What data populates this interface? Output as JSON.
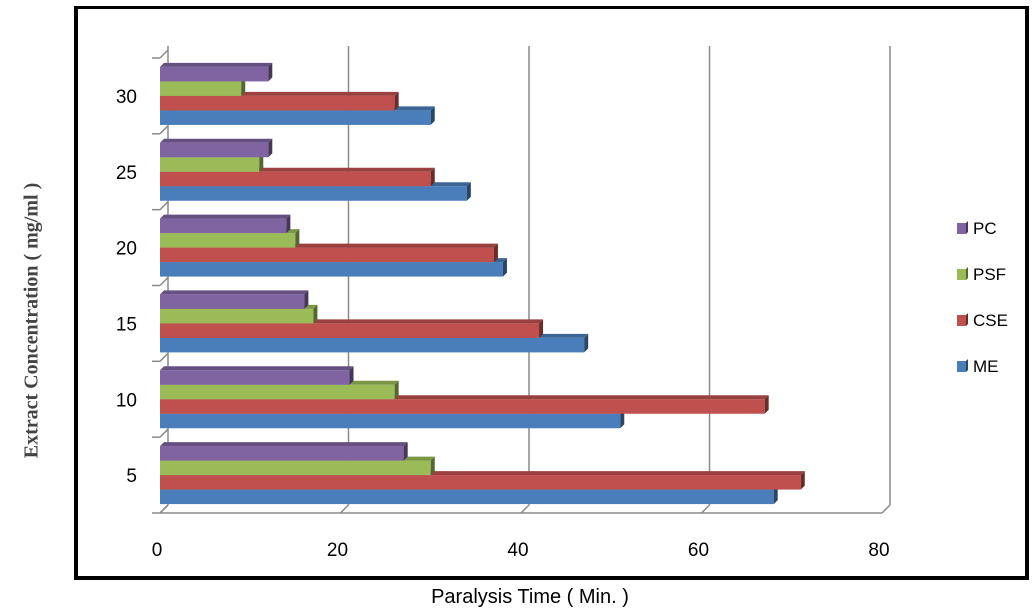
{
  "chart_data": {
    "type": "bar",
    "orientation": "horizontal",
    "categories": [
      "5",
      "10",
      "15",
      "20",
      "25",
      "30"
    ],
    "series": [
      {
        "name": "ME",
        "color": "#4a7ebb",
        "values": [
          68,
          51,
          47,
          38,
          34,
          30
        ]
      },
      {
        "name": "CSE",
        "color": "#c0504d",
        "values": [
          71,
          67,
          42,
          37,
          30,
          26
        ]
      },
      {
        "name": "PSF",
        "color": "#9bbb59",
        "values": [
          30,
          26,
          17,
          15,
          11,
          9
        ]
      },
      {
        "name": "PC",
        "color": "#8064a2",
        "values": [
          27,
          21,
          16,
          14,
          12,
          12
        ]
      }
    ],
    "xlabel": "Paralysis Time ( Min. )",
    "ylabel": "Extract  Concentration ( mg/ml )",
    "xlim": [
      0,
      80
    ],
    "xticks": [
      "0",
      "20",
      "40",
      "60",
      "80"
    ],
    "grid": true,
    "legend_position": "right",
    "legend_order": [
      "PC",
      "PSF",
      "CSE",
      "ME"
    ]
  }
}
